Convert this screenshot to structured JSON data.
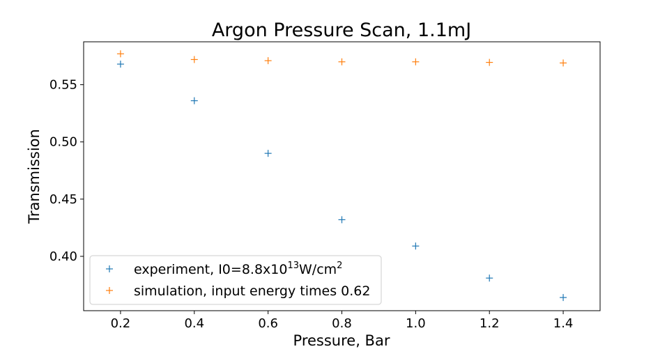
{
  "chart_data": {
    "type": "scatter",
    "title": "Argon Pressure Scan, 1.1mJ",
    "xlabel": "Pressure, Bar",
    "ylabel": "Transmission",
    "xlim": [
      0.1,
      1.5
    ],
    "ylim": [
      0.3525,
      0.5875
    ],
    "xticks": [
      0.2,
      0.4,
      0.6,
      0.8,
      1.0,
      1.2,
      1.4
    ],
    "xtick_labels": [
      "0.2",
      "0.4",
      "0.6",
      "0.8",
      "1.0",
      "1.2",
      "1.4"
    ],
    "yticks": [
      0.4,
      0.45,
      0.5,
      0.55
    ],
    "ytick_labels": [
      "0.40",
      "0.45",
      "0.50",
      "0.55"
    ],
    "grid": false,
    "marker": "+",
    "legend_position": "bottom-left",
    "series": [
      {
        "name_prefix": "experiment, I0=8.8x10",
        "name_sup1": "13",
        "name_mid": "W/cm",
        "name_sup2": "2",
        "color": "#1f77b4",
        "x": [
          0.2,
          0.4,
          0.6,
          0.8,
          1.0,
          1.2,
          1.4
        ],
        "y": [
          0.568,
          0.536,
          0.49,
          0.432,
          0.409,
          0.381,
          0.364
        ]
      },
      {
        "name": "simulation, input energy times 0.62",
        "color": "#ff7f0e",
        "x": [
          0.2,
          0.4,
          0.6,
          0.8,
          1.0,
          1.2,
          1.4
        ],
        "y": [
          0.577,
          0.572,
          0.571,
          0.57,
          0.57,
          0.5695,
          0.569
        ]
      }
    ]
  }
}
